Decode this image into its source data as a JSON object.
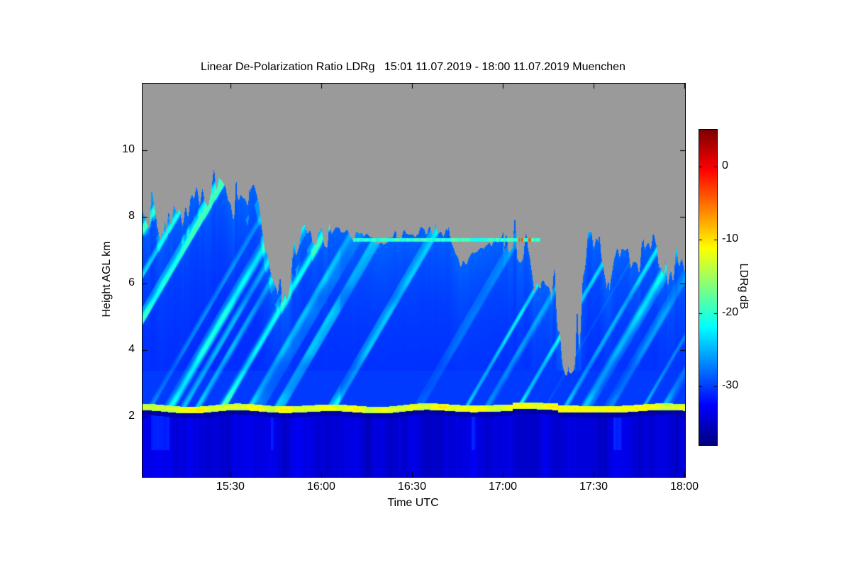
{
  "chart_data": {
    "type": "heatmap",
    "title": "Linear De-Polarization Ratio LDRg   15:01 11.07.2019 - 18:00 11.07.2019 Muenchen",
    "xlabel": "Time UTC",
    "ylabel": "Height AGL km",
    "x_axis": {
      "start_hour": 15.012,
      "end_hour": 18.0,
      "ticks": [
        {
          "hour": 15.5,
          "label": "15:30"
        },
        {
          "hour": 16.0,
          "label": "16:00"
        },
        {
          "hour": 16.5,
          "label": "16:30"
        },
        {
          "hour": 17.0,
          "label": "17:00"
        },
        {
          "hour": 17.5,
          "label": "17:30"
        },
        {
          "hour": 18.0,
          "label": "18:00"
        }
      ]
    },
    "y_axis": {
      "min_km": 0.19,
      "max_km": 12.0,
      "ticks": [
        {
          "km": 2,
          "label": "2"
        },
        {
          "km": 4,
          "label": "4"
        },
        {
          "km": 6,
          "label": "6"
        },
        {
          "km": 8,
          "label": "8"
        },
        {
          "km": 10,
          "label": "10"
        }
      ]
    },
    "colorbar": {
      "label": "LDRg dB",
      "colormap": "jet",
      "min_db": -38,
      "max_db": 5,
      "ticks": [
        {
          "db": 0,
          "label": "0"
        },
        {
          "db": -10,
          "label": "-10"
        },
        {
          "db": -20,
          "label": "-20"
        },
        {
          "db": -30,
          "label": "-30"
        }
      ]
    },
    "no_data_color": "#9a9a9a",
    "fields": {
      "boundary_band": {
        "center_km": 2.26,
        "half_thickness_km": 0.1,
        "value_db": -14,
        "core_value_db": -11.5
      },
      "below_band_db": -34,
      "band_shadow_db": -36.3,
      "shadow_thickness_km": 0.14,
      "interior_deep_db": -31,
      "interior_top_db": -28.4,
      "above_band_db": -30.2,
      "above_band_top_km": 3.4,
      "streak_db": -21,
      "streak_max_brighten_db": 10,
      "cirrus": {
        "height_km": 7.32,
        "start_hour": 16.17,
        "end_hour": 17.2,
        "value_db": -20,
        "speck_db": -4,
        "speck_start_hour": 17.03,
        "speck_end_hour": 17.16
      },
      "cloud_top_profile": {
        "hours": [
          15.02,
          15.1,
          15.17,
          15.23,
          15.3,
          15.37,
          15.43,
          15.5,
          15.55,
          15.6,
          15.67,
          15.73,
          15.8,
          15.88,
          15.95,
          16.03,
          16.1,
          16.2,
          16.3,
          16.4,
          16.5,
          16.58,
          16.65,
          16.72,
          16.8,
          16.88,
          16.95,
          17.0,
          17.05,
          17.1,
          17.17,
          17.23,
          17.3,
          17.37,
          17.43,
          17.5,
          17.57,
          17.63,
          17.7,
          17.77,
          17.83,
          17.9,
          17.95,
          18.0
        ],
        "top_km": [
          8.6,
          8.2,
          7.7,
          8.1,
          8.4,
          8.3,
          8.8,
          8.3,
          9.2,
          8.7,
          8.1,
          7.8,
          7.5,
          7.4,
          7.5,
          7.4,
          7.42,
          7.45,
          7.38,
          7.42,
          7.55,
          7.75,
          7.5,
          7.85,
          7.6,
          7.9,
          8.0,
          8.05,
          7.5,
          6.9,
          6.3,
          6.6,
          5.9,
          6.8,
          6.5,
          7.1,
          6.4,
          6.8,
          6.1,
          6.7,
          6.9,
          6.6,
          7.0,
          6.8
        ]
      }
    }
  }
}
